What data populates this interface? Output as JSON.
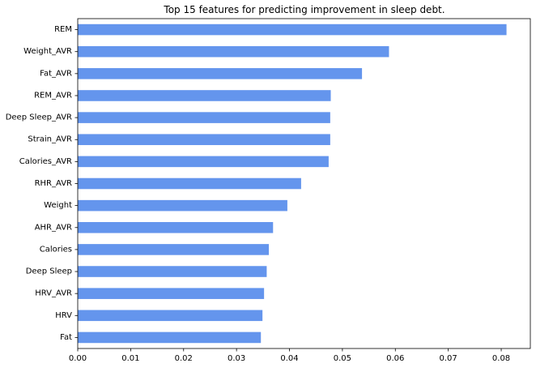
{
  "chart_data": {
    "type": "bar",
    "orientation": "horizontal",
    "title": "Top 15 features for predicting improvement in sleep debt.",
    "xlabel": "",
    "ylabel": "",
    "categories": [
      "REM",
      "Weight_AVR",
      "Fat_AVR",
      "REM_AVR",
      "Deep Sleep_AVR",
      "Strain_AVR",
      "Calories_AVR",
      "RHR_AVR",
      "Weight",
      "AHR_AVR",
      "Calories",
      "Deep Sleep",
      "HRV_AVR",
      "HRV",
      "Fat"
    ],
    "values": [
      0.081,
      0.0588,
      0.0537,
      0.0478,
      0.0477,
      0.0477,
      0.0474,
      0.0422,
      0.0396,
      0.0369,
      0.0361,
      0.0357,
      0.0352,
      0.0349,
      0.0346
    ],
    "xlim": [
      0.0,
      0.0855
    ],
    "xticks": [
      0.0,
      0.01,
      0.02,
      0.03,
      0.04,
      0.05,
      0.06,
      0.07,
      0.08
    ],
    "xtick_labels": [
      "0.00",
      "0.01",
      "0.02",
      "0.03",
      "0.04",
      "0.05",
      "0.06",
      "0.07",
      "0.08"
    ],
    "grid": false,
    "legend": "none",
    "bar_color": "#6495ED"
  }
}
